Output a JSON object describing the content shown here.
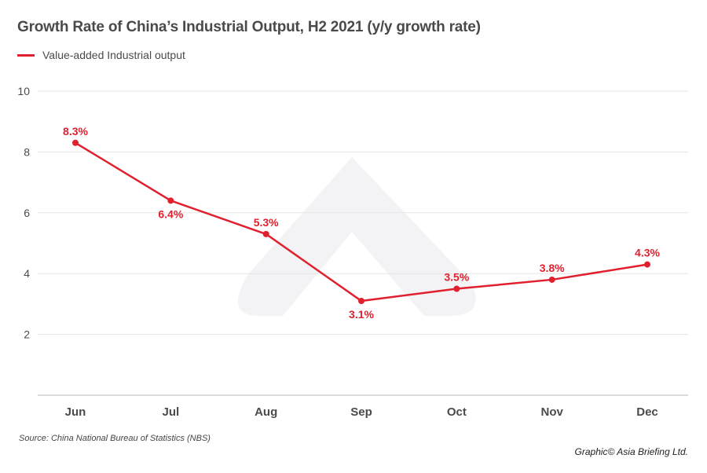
{
  "chart_data": {
    "type": "line",
    "title": "Growth Rate of China’s Industrial Output, H2 2021 (y/y growth rate)",
    "xlabel": "",
    "ylabel": "",
    "categories": [
      "Jun",
      "Jul",
      "Aug",
      "Sep",
      "Oct",
      "Nov",
      "Dec"
    ],
    "series": [
      {
        "name": "Value-added Industrial output",
        "color": "#e0202e",
        "values": [
          8.3,
          6.4,
          5.3,
          3.1,
          3.5,
          3.8,
          4.3
        ],
        "labels": [
          "8.3%",
          "6.4%",
          "5.3%",
          "3.1%",
          "3.5%",
          "3.8%",
          "4.3%"
        ],
        "label_positions": [
          "above",
          "below",
          "above",
          "below",
          "above",
          "above",
          "above"
        ]
      }
    ],
    "ylim": [
      0,
      10
    ],
    "yticks": [
      2,
      4,
      6,
      8,
      10
    ],
    "grid": true,
    "legend_position": "top-left"
  },
  "footer": {
    "source": "Source: China National Bureau of Statistics (NBS)",
    "credit": "Graphic© Asia Briefing Ltd."
  },
  "colors": {
    "line": "#e0202e",
    "grid": "#e6e6e6",
    "axis": "#cfcfcf",
    "text": "#4a4a4a",
    "watermark": "#f3f3f5"
  }
}
